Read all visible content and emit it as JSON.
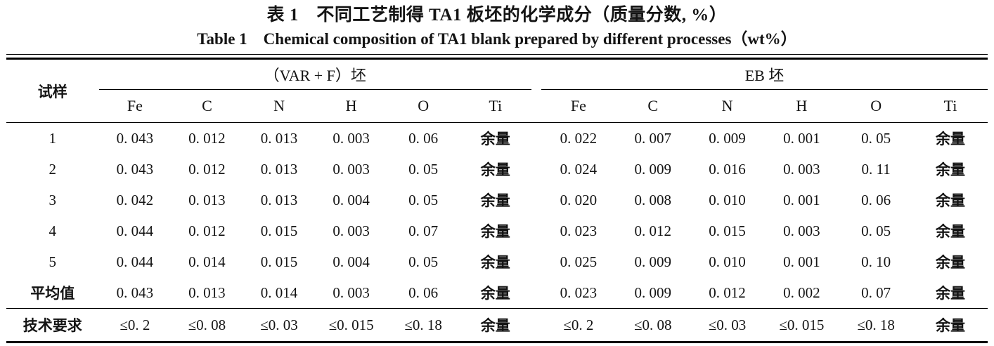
{
  "page": {
    "background": "#ffffff",
    "text_color": "#141414",
    "rule_color": "#000000"
  },
  "title": {
    "zh": "表 1　不同工艺制得 TA1 板坯的化学成分（质量分数, %）",
    "en": "Table 1　Chemical composition of TA1 blank prepared by different processes（wt%）"
  },
  "table": {
    "sample_header": "试样",
    "groups": [
      {
        "label": "（VAR + F）坯",
        "columns": [
          "Fe",
          "C",
          "N",
          "H",
          "O",
          "Ti"
        ]
      },
      {
        "label": "EB 坯",
        "columns": [
          "Fe",
          "C",
          "N",
          "H",
          "O",
          "Ti"
        ]
      }
    ],
    "rows": [
      {
        "sample": "1",
        "var_f": [
          "0. 043",
          "0. 012",
          "0. 013",
          "0. 003",
          "0. 06",
          "余量"
        ],
        "eb": [
          "0. 022",
          "0. 007",
          "0. 009",
          "0. 001",
          "0. 05",
          "余量"
        ]
      },
      {
        "sample": "2",
        "var_f": [
          "0. 043",
          "0. 012",
          "0. 013",
          "0. 003",
          "0. 05",
          "余量"
        ],
        "eb": [
          "0. 024",
          "0. 009",
          "0. 016",
          "0. 003",
          "0. 11",
          "余量"
        ]
      },
      {
        "sample": "3",
        "var_f": [
          "0. 042",
          "0. 013",
          "0. 013",
          "0. 004",
          "0. 05",
          "余量"
        ],
        "eb": [
          "0. 020",
          "0. 008",
          "0. 010",
          "0. 001",
          "0. 06",
          "余量"
        ]
      },
      {
        "sample": "4",
        "var_f": [
          "0. 044",
          "0. 012",
          "0. 015",
          "0. 003",
          "0. 07",
          "余量"
        ],
        "eb": [
          "0. 023",
          "0. 012",
          "0. 015",
          "0. 003",
          "0. 05",
          "余量"
        ]
      },
      {
        "sample": "5",
        "var_f": [
          "0. 044",
          "0. 014",
          "0. 015",
          "0. 004",
          "0. 05",
          "余量"
        ],
        "eb": [
          "0. 025",
          "0. 009",
          "0. 010",
          "0. 001",
          "0. 10",
          "余量"
        ]
      },
      {
        "sample": "平均值",
        "var_f": [
          "0. 043",
          "0. 013",
          "0. 014",
          "0. 003",
          "0. 06",
          "余量"
        ],
        "eb": [
          "0. 023",
          "0. 009",
          "0. 012",
          "0. 002",
          "0. 07",
          "余量"
        ]
      }
    ],
    "requirement_row": {
      "sample": "技术要求",
      "var_f": [
        "≤0. 2",
        "≤0. 08",
        "≤0. 03",
        "≤0. 015",
        "≤0. 18",
        "余量"
      ],
      "eb": [
        "≤0. 2",
        "≤0. 08",
        "≤0. 03",
        "≤0. 015",
        "≤0. 18",
        "余量"
      ]
    }
  }
}
